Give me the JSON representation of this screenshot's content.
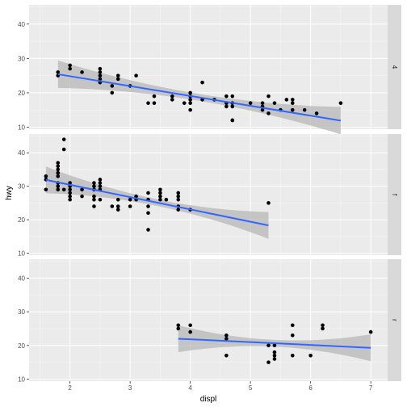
{
  "chart_data": {
    "type": "scatter",
    "xlabel": "displ",
    "ylabel": "hwy",
    "xlim": [
      1.32,
      7.28
    ],
    "ylim": [
      9.4,
      45.6
    ],
    "x_ticks": [
      2,
      3,
      4,
      5,
      6,
      7
    ],
    "y_ticks": [
      10,
      20,
      30,
      40
    ],
    "grid": true,
    "colors": {
      "panel_bg": "#ebebeb",
      "strip_bg": "#d9d9d9",
      "grid_major": "#ffffff",
      "point": "#000000",
      "smooth_line": "#3366ff",
      "ribbon": "#b3b3b3"
    },
    "panels": [
      {
        "strip_label": "4",
        "points": [
          [
            1.8,
            26
          ],
          [
            1.8,
            25
          ],
          [
            2.0,
            28
          ],
          [
            2.0,
            27
          ],
          [
            2.2,
            26
          ],
          [
            2.5,
            27
          ],
          [
            2.5,
            26
          ],
          [
            2.5,
            25
          ],
          [
            2.5,
            24
          ],
          [
            2.5,
            23
          ],
          [
            2.7,
            22
          ],
          [
            2.7,
            20
          ],
          [
            2.8,
            25
          ],
          [
            2.8,
            24
          ],
          [
            3.0,
            22
          ],
          [
            3.1,
            25
          ],
          [
            3.3,
            17
          ],
          [
            3.4,
            19
          ],
          [
            3.4,
            17
          ],
          [
            3.7,
            19
          ],
          [
            3.7,
            18
          ],
          [
            3.9,
            17
          ],
          [
            4.0,
            20
          ],
          [
            4.0,
            19
          ],
          [
            4.0,
            18
          ],
          [
            4.0,
            17
          ],
          [
            4.0,
            15
          ],
          [
            4.2,
            23
          ],
          [
            4.2,
            18
          ],
          [
            4.4,
            18
          ],
          [
            4.6,
            19
          ],
          [
            4.6,
            17
          ],
          [
            4.6,
            16
          ],
          [
            4.7,
            19
          ],
          [
            4.7,
            17
          ],
          [
            4.7,
            16
          ],
          [
            4.7,
            12
          ],
          [
            4.7,
            12
          ],
          [
            5.0,
            17
          ],
          [
            5.2,
            17
          ],
          [
            5.2,
            16
          ],
          [
            5.2,
            15
          ],
          [
            5.3,
            14
          ],
          [
            5.3,
            19
          ],
          [
            5.4,
            17
          ],
          [
            5.5,
            15
          ],
          [
            5.6,
            18
          ],
          [
            5.7,
            18
          ],
          [
            5.7,
            17
          ],
          [
            5.7,
            15
          ],
          [
            5.9,
            15
          ],
          [
            6.1,
            14
          ],
          [
            6.5,
            17
          ]
        ],
        "trend": {
          "x": [
            1.8,
            6.5
          ],
          "y": [
            25.4,
            11.9
          ]
        }
      },
      {
        "strip_label": "f",
        "points": [
          [
            1.6,
            33
          ],
          [
            1.6,
            32
          ],
          [
            1.6,
            29
          ],
          [
            1.8,
            37
          ],
          [
            1.8,
            36
          ],
          [
            1.8,
            35
          ],
          [
            1.8,
            34
          ],
          [
            1.8,
            33
          ],
          [
            1.8,
            31
          ],
          [
            1.8,
            30
          ],
          [
            1.8,
            29
          ],
          [
            1.9,
            44
          ],
          [
            1.9,
            41
          ],
          [
            1.9,
            29
          ],
          [
            2.0,
            31
          ],
          [
            2.0,
            30
          ],
          [
            2.0,
            29
          ],
          [
            2.0,
            28
          ],
          [
            2.0,
            27
          ],
          [
            2.0,
            26
          ],
          [
            2.2,
            29
          ],
          [
            2.2,
            27
          ],
          [
            2.4,
            31
          ],
          [
            2.4,
            30
          ],
          [
            2.4,
            29
          ],
          [
            2.4,
            27
          ],
          [
            2.4,
            26
          ],
          [
            2.4,
            24
          ],
          [
            2.5,
            32
          ],
          [
            2.5,
            31
          ],
          [
            2.5,
            30
          ],
          [
            2.5,
            29
          ],
          [
            2.5,
            26
          ],
          [
            2.7,
            24
          ],
          [
            2.8,
            26
          ],
          [
            2.8,
            24
          ],
          [
            2.8,
            23
          ],
          [
            3.0,
            26
          ],
          [
            3.0,
            24
          ],
          [
            3.1,
            26
          ],
          [
            3.1,
            27
          ],
          [
            3.3,
            28
          ],
          [
            3.3,
            26
          ],
          [
            3.3,
            24
          ],
          [
            3.3,
            22
          ],
          [
            3.3,
            17
          ],
          [
            3.5,
            29
          ],
          [
            3.5,
            28
          ],
          [
            3.5,
            27
          ],
          [
            3.5,
            26
          ],
          [
            3.6,
            26
          ],
          [
            3.8,
            28
          ],
          [
            3.8,
            27
          ],
          [
            3.8,
            26
          ],
          [
            3.8,
            24
          ],
          [
            3.8,
            23
          ],
          [
            4.0,
            23
          ],
          [
            5.3,
            25
          ]
        ],
        "trend": {
          "x": [
            1.6,
            5.3
          ],
          "y": [
            31.9,
            18.3
          ]
        }
      },
      {
        "strip_label": "r",
        "points": [
          [
            3.8,
            26
          ],
          [
            3.8,
            25
          ],
          [
            4.0,
            26
          ],
          [
            4.0,
            24
          ],
          [
            4.6,
            23
          ],
          [
            4.6,
            22
          ],
          [
            4.6,
            17
          ],
          [
            5.3,
            15
          ],
          [
            5.3,
            20
          ],
          [
            5.4,
            20
          ],
          [
            5.4,
            18
          ],
          [
            5.4,
            17
          ],
          [
            5.4,
            16
          ],
          [
            5.7,
            26
          ],
          [
            5.7,
            23
          ],
          [
            5.7,
            17
          ],
          [
            6.0,
            17
          ],
          [
            6.2,
            26
          ],
          [
            6.2,
            25
          ],
          [
            7.0,
            24
          ]
        ],
        "trend": {
          "x": [
            3.8,
            7.0
          ],
          "y": [
            22.0,
            19.3
          ]
        }
      }
    ]
  }
}
